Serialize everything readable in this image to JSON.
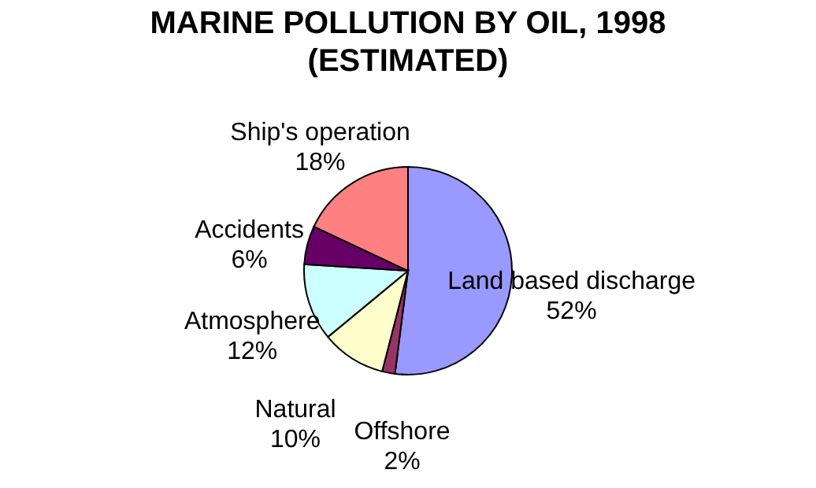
{
  "chart_data": {
    "type": "pie",
    "title": "MARINE POLLUTION BY OIL, 1998 (ESTIMATED)",
    "categories": [
      "Land based discharge",
      "Offshore",
      "Natural",
      "Atmosphere",
      "Accidents",
      "Ship's operation"
    ],
    "values": [
      52,
      2,
      10,
      12,
      6,
      18
    ],
    "value_labels": [
      "52%",
      "2%",
      "10%",
      "12%",
      "6%",
      "18%"
    ],
    "colors": [
      "#9999ff",
      "#993366",
      "#ffffcc",
      "#ccffff",
      "#660066",
      "#ff8080"
    ],
    "legend": false
  }
}
